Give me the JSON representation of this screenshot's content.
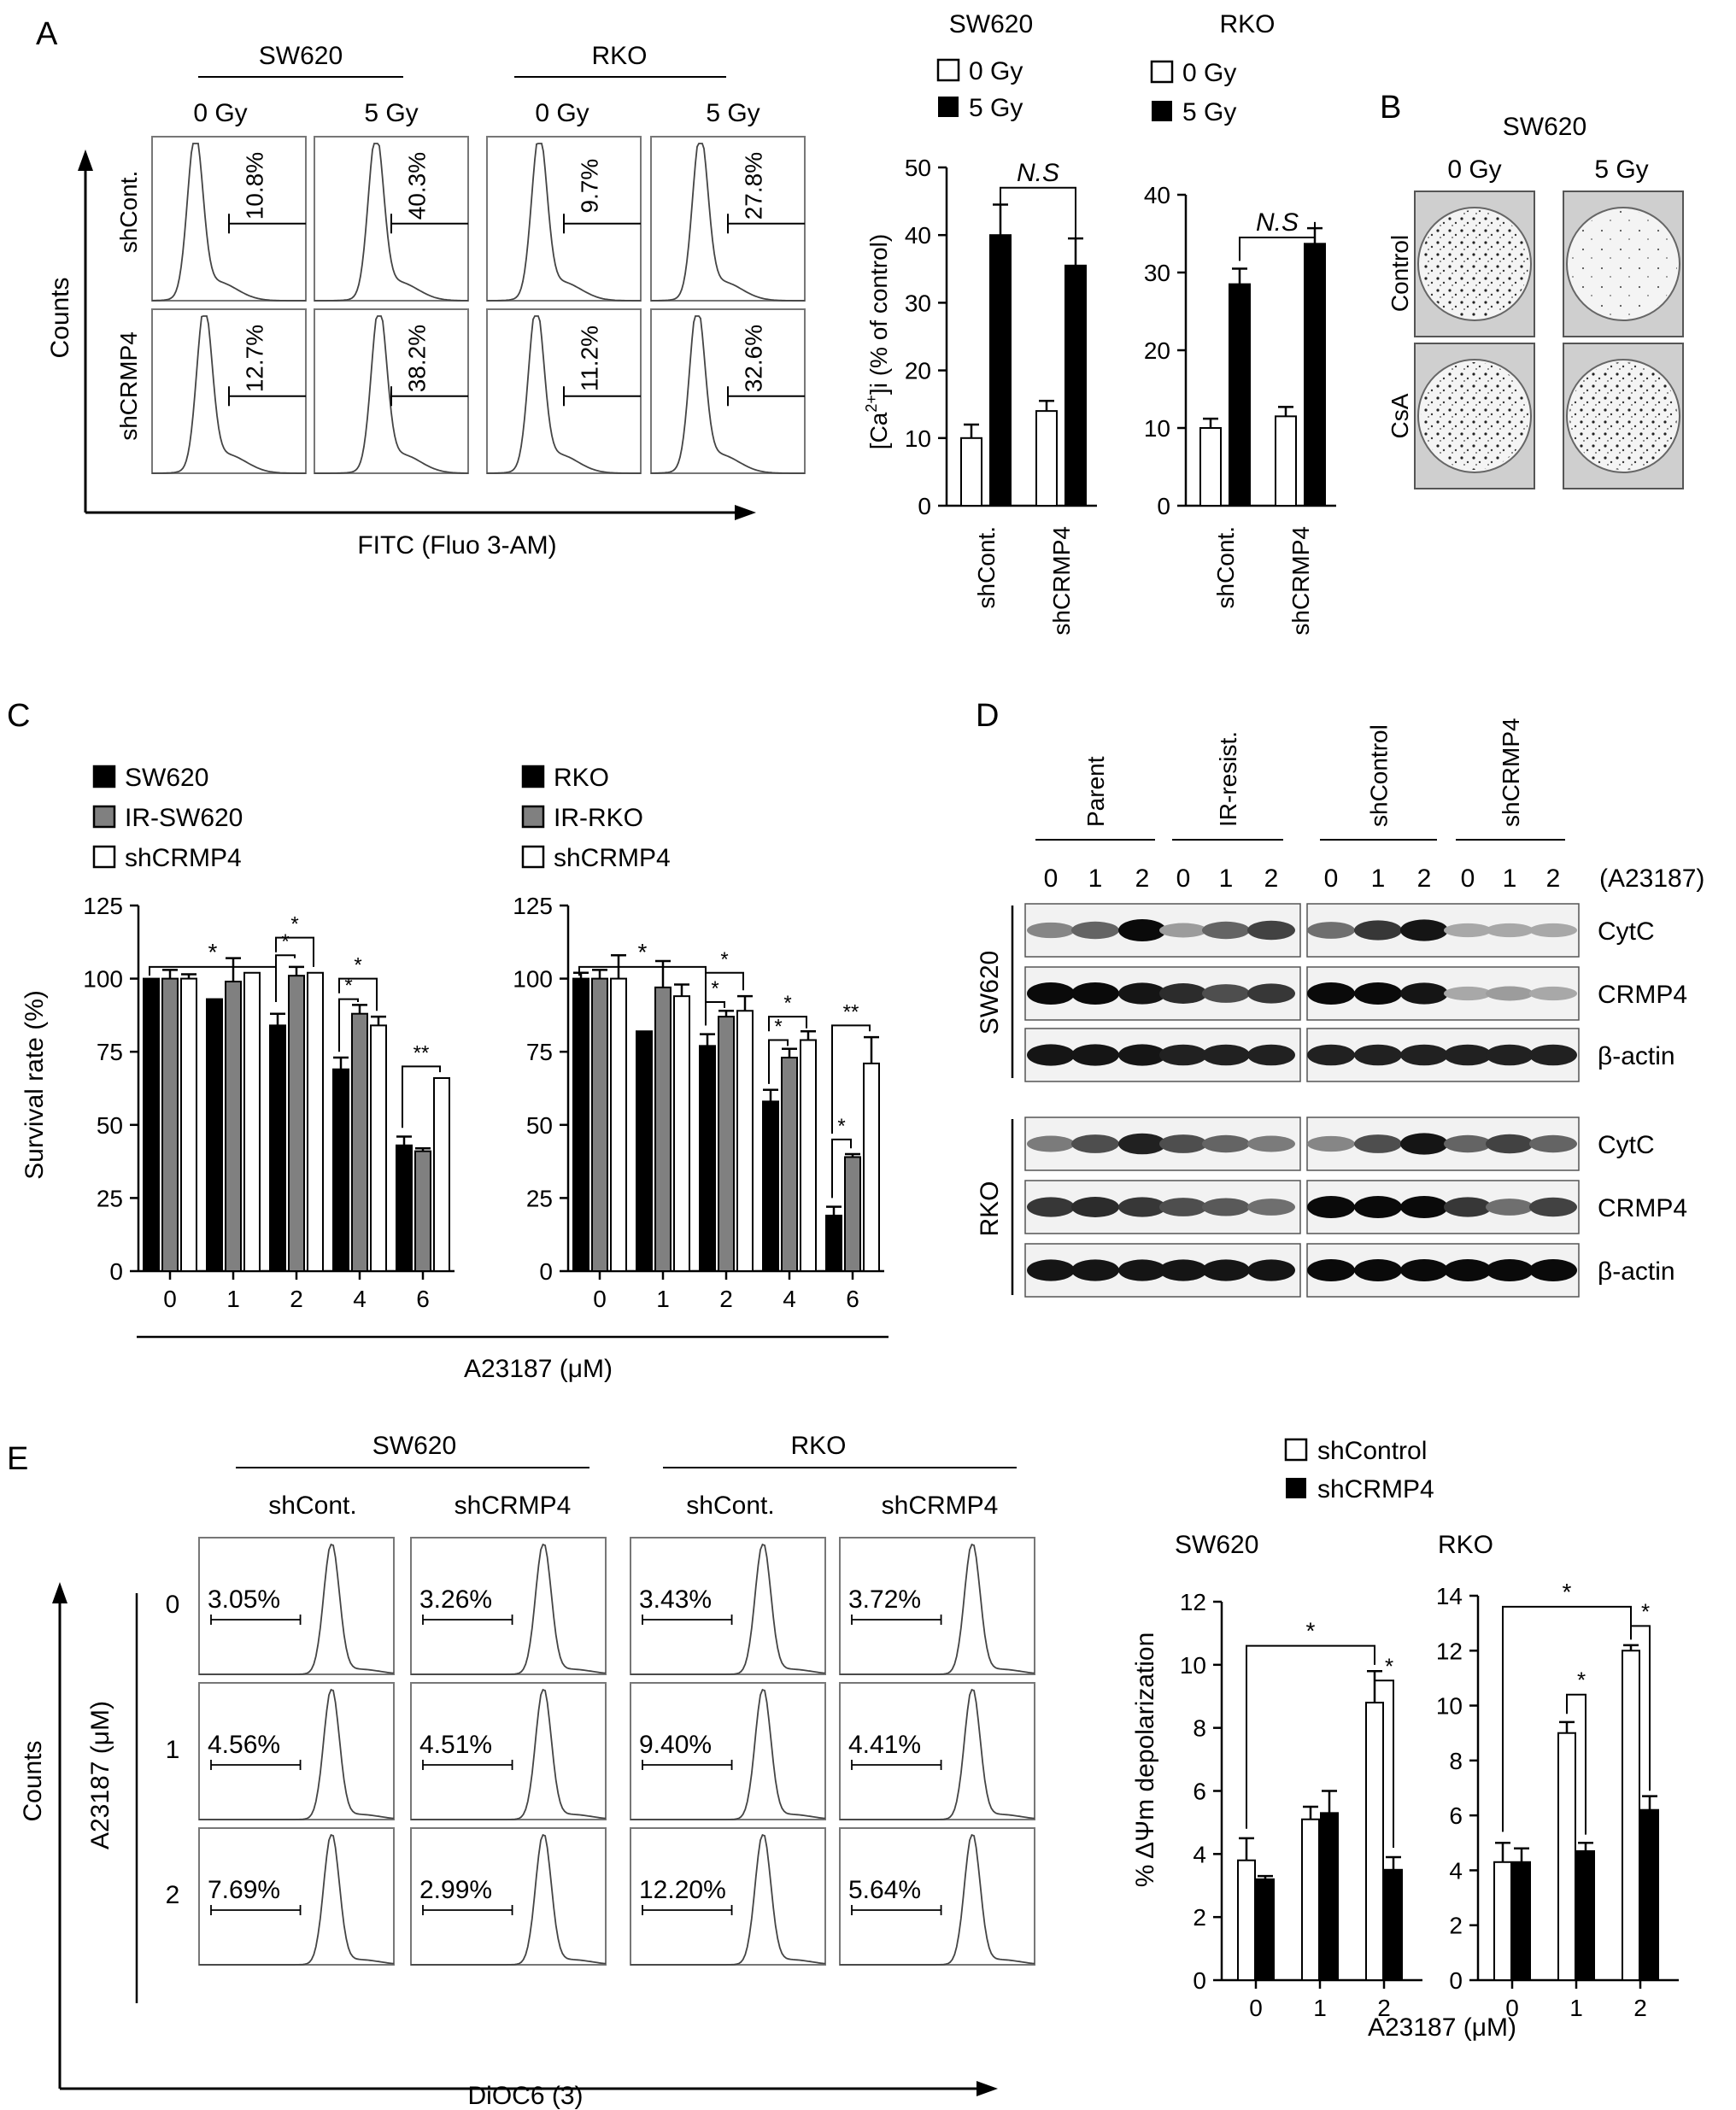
{
  "figure": {
    "panel_labels": {
      "a": "A",
      "b": "B",
      "c": "C",
      "d": "D",
      "e": "E"
    }
  },
  "panel_a": {
    "flow": {
      "cell_lines": [
        "SW620",
        "RKO"
      ],
      "doses": [
        "0 Gy",
        "5 Gy",
        "0 Gy",
        "5 Gy"
      ],
      "rows": [
        "shCont.",
        "shCRMP4"
      ],
      "percentages": [
        [
          "10.8%",
          "40.3%",
          "9.7%",
          "27.8%"
        ],
        [
          "12.7%",
          "38.2%",
          "11.2%",
          "32.6%"
        ]
      ],
      "y_axis": "Counts",
      "x_axis": "FITC (Fluo 3-AM)"
    },
    "legend": {
      "open": "0 Gy",
      "filled": "5 Gy"
    },
    "ylabel": "[Ca2+]i (% of control)",
    "ylabel_parts": {
      "pre": "[Ca",
      "sup": "2+",
      "post": "]i (% of control)"
    }
  },
  "panel_b": {
    "title": "SW620",
    "columns": [
      "0 Gy",
      "5 Gy"
    ],
    "rows": [
      "Control",
      "CsA"
    ]
  },
  "panel_c": {
    "xlabel": "A23187 (μM)",
    "ylabel": "Survival rate (%)",
    "sig": {
      "one": "*",
      "two": "**"
    }
  },
  "panel_d": {
    "groups": [
      "Parent",
      "IR-resist.",
      "shControl",
      "shCRMP4"
    ],
    "lanes": [
      "0",
      "1",
      "2",
      "0",
      "1",
      "2",
      "0",
      "1",
      "2",
      "0",
      "1",
      "2"
    ],
    "treatment": "(A23187)",
    "cell_lines": [
      "SW620",
      "RKO"
    ],
    "proteins": [
      "CytC",
      "CRMP4",
      "β-actin"
    ]
  },
  "panel_e": {
    "cell_lines": [
      "SW620",
      "RKO"
    ],
    "columns": [
      "shCont.",
      "shCRMP4",
      "shCont.",
      "shCRMP4"
    ],
    "concentrations": [
      "0",
      "1",
      "2"
    ],
    "percentages": [
      [
        "3.05%",
        "3.26%",
        "3.43%",
        "3.72%"
      ],
      [
        "4.56%",
        "4.51%",
        "9.40%",
        "4.41%"
      ],
      [
        "7.69%",
        "2.99%",
        "12.20%",
        "5.64%"
      ]
    ],
    "y_axis": "Counts",
    "dose_axis": "A23187 (μM)",
    "x_axis": "DiOC6 (3)",
    "legend": {
      "open": "shControl",
      "filled": "shCRMP4"
    },
    "ylabel": "% ΔΨm depolarization",
    "xlabel": "A23187 (μM)"
  },
  "chart_data": [
    {
      "id": "A-SW620",
      "type": "bar",
      "title": "SW620",
      "categories": [
        "shCont.",
        "shCRMP4"
      ],
      "series": [
        {
          "name": "0 Gy",
          "values": [
            10,
            14
          ],
          "errors": [
            2,
            1.5
          ],
          "color": "#ffffff"
        },
        {
          "name": "5 Gy",
          "values": [
            40,
            35.5
          ],
          "errors": [
            4.5,
            4
          ],
          "color": "#000000"
        }
      ],
      "ylabel": "[Ca2+]i (% of control)",
      "ylim": [
        0,
        50
      ],
      "yticks": [
        "0",
        "10",
        "20",
        "30",
        "40",
        "50"
      ],
      "annotations": [
        "N.S"
      ]
    },
    {
      "id": "A-RKO",
      "type": "bar",
      "title": "RKO",
      "categories": [
        "shCont.",
        "shCRMP4"
      ],
      "series": [
        {
          "name": "0 Gy",
          "values": [
            10,
            11.5
          ],
          "errors": [
            1.2,
            1.2
          ],
          "color": "#ffffff"
        },
        {
          "name": "5 Gy",
          "values": [
            28.5,
            33.7
          ],
          "errors": [
            2,
            2
          ],
          "color": "#000000"
        }
      ],
      "ylim": [
        0,
        40
      ],
      "yticks": [
        "0",
        "10",
        "20",
        "30",
        "40"
      ],
      "annotations": [
        "N.S"
      ]
    },
    {
      "id": "C-SW620",
      "type": "bar",
      "categories": [
        "0",
        "1",
        "2",
        "4",
        "6"
      ],
      "series": [
        {
          "name": "SW620",
          "values": [
            100,
            93,
            84,
            69,
            43
          ],
          "errors": [
            0,
            0,
            4,
            4,
            3
          ],
          "color": "#000000"
        },
        {
          "name": "IR-SW620",
          "values": [
            100,
            99,
            101,
            88,
            41
          ],
          "errors": [
            3,
            8,
            3,
            3,
            1
          ],
          "color": "#808080"
        },
        {
          "name": "shCRMP4",
          "values": [
            100,
            102,
            102,
            84,
            66
          ],
          "errors": [
            1.5,
            0,
            0,
            3,
            0
          ],
          "color": "#ffffff"
        }
      ],
      "ylabel": "Survival rate (%)",
      "xlabel": "A23187 (μM)",
      "ylim": [
        0,
        125
      ],
      "yticks": [
        "0",
        "25",
        "50",
        "75",
        "100",
        "125"
      ]
    },
    {
      "id": "C-RKO",
      "type": "bar",
      "categories": [
        "0",
        "1",
        "2",
        "4",
        "6"
      ],
      "series": [
        {
          "name": "RKO",
          "values": [
            100,
            82,
            77,
            58,
            19
          ],
          "errors": [
            2,
            0,
            4,
            4,
            3
          ],
          "color": "#000000"
        },
        {
          "name": "IR-RKO",
          "values": [
            100,
            97,
            87,
            73,
            39
          ],
          "errors": [
            3,
            9,
            2,
            3,
            1
          ],
          "color": "#808080"
        },
        {
          "name": "shCRMP4",
          "values": [
            100,
            94,
            89,
            79,
            71
          ],
          "errors": [
            8,
            4,
            5,
            3,
            9
          ],
          "color": "#ffffff"
        }
      ],
      "xlabel": "A23187 (μM)",
      "ylim": [
        0,
        125
      ],
      "yticks": [
        "0",
        "25",
        "50",
        "75",
        "100",
        "125"
      ]
    },
    {
      "id": "E-SW620",
      "type": "bar",
      "title": "SW620",
      "categories": [
        "0",
        "1",
        "2"
      ],
      "series": [
        {
          "name": "shControl",
          "values": [
            3.8,
            5.1,
            8.8
          ],
          "errors": [
            0.7,
            0.4,
            1.0
          ],
          "color": "#ffffff"
        },
        {
          "name": "shCRMP4",
          "values": [
            3.2,
            5.3,
            3.5
          ],
          "errors": [
            0.1,
            0.7,
            0.4
          ],
          "color": "#000000"
        }
      ],
      "ylabel": "% ΔΨm depolarization",
      "xlabel": "A23187 (μM)",
      "ylim": [
        0,
        12
      ],
      "yticks": [
        "0",
        "2",
        "4",
        "6",
        "8",
        "10",
        "12"
      ]
    },
    {
      "id": "E-RKO",
      "type": "bar",
      "title": "RKO",
      "categories": [
        "0",
        "1",
        "2"
      ],
      "series": [
        {
          "name": "shControl",
          "values": [
            4.3,
            9.0,
            12.0
          ],
          "errors": [
            0.7,
            0.4,
            0.2
          ],
          "color": "#ffffff"
        },
        {
          "name": "shCRMP4",
          "values": [
            4.3,
            4.7,
            6.2
          ],
          "errors": [
            0.5,
            0.3,
            0.5
          ],
          "color": "#000000"
        }
      ],
      "xlabel": "A23187 (μM)",
      "ylim": [
        0,
        14
      ],
      "yticks": [
        "0",
        "2",
        "4",
        "6",
        "8",
        "10",
        "12",
        "14"
      ]
    }
  ]
}
